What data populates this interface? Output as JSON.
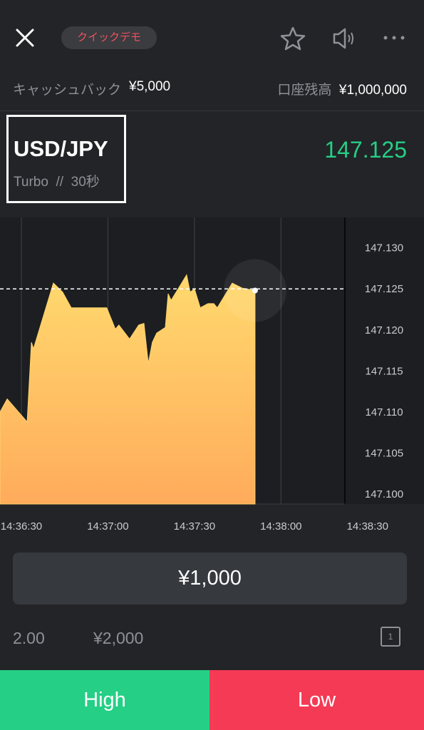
{
  "header": {
    "badge": "クイックデモ"
  },
  "account": {
    "cashback_label": "キャッシュバック",
    "cashback": "¥5,000",
    "balance_label": "口座残高",
    "balance": "¥1,000,000"
  },
  "asset": {
    "pair": "USD/JPY",
    "mode": "Turbo",
    "separator": "//",
    "duration": "30秒",
    "price": "147.125"
  },
  "chart": {
    "type": "area",
    "color": "#ffd36b",
    "x": [
      52582.6,
      52585.1,
      52592.0,
      52593.5,
      52594.2,
      52601.1,
      52604.3,
      52607.3,
      52608.3,
      52619.6,
      52622.6,
      52623.8,
      52627.5,
      52630.7,
      52632.5,
      52634.0,
      52635.4,
      52636.9,
      52639.9,
      52640.9,
      52641.9,
      52647.3,
      52648.5,
      52650.0,
      52652.0,
      52654.7,
      52656.7,
      52657.9,
      52663.1,
      52666.5,
      52671.0
    ],
    "values": [
      147.11,
      147.1116,
      147.1088,
      147.1185,
      147.1177,
      147.1257,
      147.1246,
      147.1227,
      147.1227,
      147.1227,
      147.1201,
      147.1206,
      147.1189,
      147.1206,
      147.1208,
      147.1159,
      147.1185,
      147.1196,
      147.1203,
      147.1244,
      147.1236,
      147.1267,
      147.1246,
      147.125,
      147.1227,
      147.1232,
      147.1232,
      147.1227,
      147.1257,
      147.1251,
      147.1248
    ],
    "xlim": [
      52582.6,
      52701.9
    ],
    "ylim": [
      147.0988,
      147.1337
    ],
    "xticks": [
      {
        "value": 52590,
        "label": "14:36:30"
      },
      {
        "value": 52620,
        "label": "14:37:00"
      },
      {
        "value": 52650,
        "label": "14:37:30"
      },
      {
        "value": 52680,
        "label": "14:38:00"
      },
      {
        "value": 52710,
        "label": "14:38:30"
      }
    ],
    "yticks": [
      {
        "value": 147.13,
        "label": "147.130"
      },
      {
        "value": 147.125,
        "label": "147.125"
      },
      {
        "value": 147.12,
        "label": "147.120"
      },
      {
        "value": 147.115,
        "label": "147.115"
      },
      {
        "value": 147.11,
        "label": "147.110"
      },
      {
        "value": 147.105,
        "label": "147.105"
      },
      {
        "value": 147.1,
        "label": "147.100"
      }
    ],
    "grid": "x",
    "current": 147.125
  },
  "trade": {
    "amount": "¥1,000",
    "payout_rate": "2.00",
    "payout": "¥2,000",
    "counter": "1",
    "high": "High",
    "low": "Low"
  }
}
